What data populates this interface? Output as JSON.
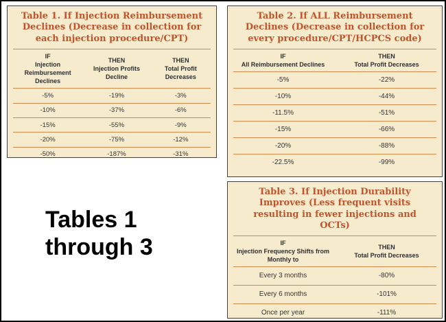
{
  "caption": "Tables 1 through 3",
  "colors": {
    "title_accent": "#c2542c",
    "panel_background": "#f6ebcd",
    "panel_border": "#3f3f3f",
    "divider": "#cd8c4e",
    "body_text": "#333333"
  },
  "chart_data": [
    {
      "type": "table",
      "title": "Table 1. If Injection Reimbursement Declines (Decrease in collection for each injection procedure/CPT)",
      "columns": [
        {
          "top": "IF",
          "sub": "Injection Reimbursement Declines"
        },
        {
          "top": "THEN",
          "sub": "Injection Profits Decline"
        },
        {
          "top": "THEN",
          "sub": "Total Profit Decreases"
        }
      ],
      "rows": [
        [
          "-5%",
          "-19%",
          "-3%"
        ],
        [
          "-10%",
          "-37%",
          "-6%"
        ],
        [
          "-15%",
          "-55%",
          "-9%"
        ],
        [
          "-20%",
          "-75%",
          "-12%"
        ],
        [
          "-50%",
          "-187%",
          "-31%"
        ]
      ]
    },
    {
      "type": "table",
      "title": "Table 2. If ALL Reimbursement Declines (Decrease in collection for every procedure/CPT/HCPCS code)",
      "columns": [
        {
          "top": "IF",
          "sub": "All Reimbursement Declines"
        },
        {
          "top": "THEN",
          "sub": "Total Profit Decreases"
        }
      ],
      "rows": [
        [
          "-5%",
          "-22%"
        ],
        [
          "-10%",
          "-44%"
        ],
        [
          "-11.5%",
          "-51%"
        ],
        [
          "-15%",
          "-66%"
        ],
        [
          "-20%",
          "-88%"
        ],
        [
          "-22.5%",
          "-99%"
        ]
      ]
    },
    {
      "type": "table",
      "title": "Table 3. If Injection Durability Improves (Less frequent visits resulting in fewer injections and OCTs)",
      "columns": [
        {
          "top": "IF",
          "sub": "Injection Frequency Shifts from Monthly to"
        },
        {
          "top": "THEN",
          "sub": "Total Profit Decreases"
        }
      ],
      "rows": [
        [
          "Every 3 months",
          "-80%"
        ],
        [
          "Every 6 months",
          "-101%"
        ],
        [
          "Once per year",
          "-111%"
        ]
      ]
    }
  ]
}
